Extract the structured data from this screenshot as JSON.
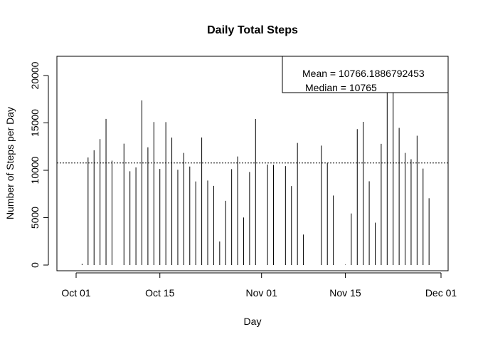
{
  "chart_data": {
    "type": "bar",
    "style": "histogram-spikes",
    "title": "Daily Total Steps",
    "xlabel": "Day",
    "ylabel": "Number of Steps per Day",
    "xlim": [
      "2012-09-30",
      "2012-11-30"
    ],
    "ylim": [
      0,
      22000
    ],
    "x_ticks": [
      {
        "date": "2012-10-01",
        "label": "Oct 01"
      },
      {
        "date": "2012-10-15",
        "label": "Oct 15"
      },
      {
        "date": "2012-11-01",
        "label": "Nov 01"
      },
      {
        "date": "2012-11-15",
        "label": "Nov 15"
      },
      {
        "date": "2012-12-01",
        "label": "Dec 01"
      }
    ],
    "y_ticks": [
      0,
      5000,
      10000,
      15000,
      20000
    ],
    "dates": [
      "2012-10-02",
      "2012-10-03",
      "2012-10-04",
      "2012-10-05",
      "2012-10-06",
      "2012-10-07",
      "2012-10-09",
      "2012-10-10",
      "2012-10-11",
      "2012-10-12",
      "2012-10-13",
      "2012-10-14",
      "2012-10-15",
      "2012-10-16",
      "2012-10-17",
      "2012-10-18",
      "2012-10-19",
      "2012-10-20",
      "2012-10-21",
      "2012-10-22",
      "2012-10-23",
      "2012-10-24",
      "2012-10-25",
      "2012-10-26",
      "2012-10-27",
      "2012-10-28",
      "2012-10-29",
      "2012-10-30",
      "2012-10-31",
      "2012-11-02",
      "2012-11-03",
      "2012-11-05",
      "2012-11-06",
      "2012-11-07",
      "2012-11-08",
      "2012-11-11",
      "2012-11-12",
      "2012-11-13",
      "2012-11-15",
      "2012-11-16",
      "2012-11-17",
      "2012-11-18",
      "2012-11-19",
      "2012-11-20",
      "2012-11-21",
      "2012-11-22",
      "2012-11-23",
      "2012-11-24",
      "2012-11-25",
      "2012-11-26",
      "2012-11-27",
      "2012-11-28",
      "2012-11-29"
    ],
    "values": [
      126,
      11352,
      12116,
      13294,
      15420,
      11015,
      12811,
      9900,
      10304,
      17382,
      12426,
      15098,
      10139,
      15084,
      13452,
      10056,
      11829,
      10395,
      8821,
      13460,
      8918,
      8355,
      2492,
      6778,
      10119,
      11458,
      5018,
      9819,
      15414,
      10600,
      10571,
      10439,
      8334,
      12883,
      3219,
      12608,
      10765,
      7336,
      41,
      5441,
      14339,
      15110,
      8841,
      4472,
      12787,
      20427,
      21194,
      14478,
      11834,
      11162,
      13646,
      10183,
      7047
    ],
    "reference_lines": [
      {
        "type": "horizontal",
        "value": 10766.1886792453,
        "style": "dotted"
      }
    ],
    "legend": {
      "position": "top-right",
      "entries": [
        "Mean = 10766.1886792453",
        "Median = 10765"
      ]
    },
    "grid": false
  }
}
